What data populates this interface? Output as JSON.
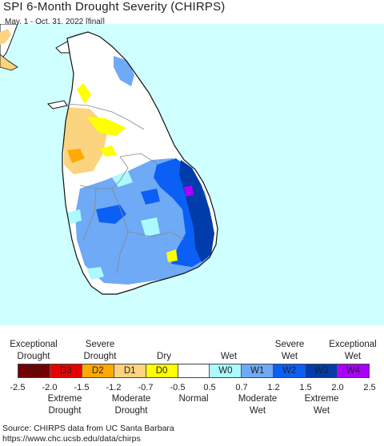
{
  "title": "SPI 6-Month Drought Severity (CHIRPS)",
  "subtitle": "May. 1 - Oct. 31, 2022 [final]",
  "colors": {
    "ocean": "#cfffff",
    "land": "#ffffff",
    "D4": "#730000",
    "D3": "#e60000",
    "D2": "#ffaa00",
    "D1": "#fcd37f",
    "D0": "#ffff00",
    "W0": "#aafaff",
    "W1": "#6eaaf5",
    "W2": "#0b5ff5",
    "W3": "#003caa",
    "W4": "#aa00ff"
  },
  "legend": {
    "top_labels": [
      {
        "lines": [
          "Exceptional",
          "Drought"
        ]
      },
      {
        "lines": [
          "Severe",
          "Drought"
        ]
      },
      {
        "lines": [
          "Dry"
        ]
      },
      {
        "lines": [
          "Wet"
        ]
      },
      {
        "lines": [
          "Severe",
          "Wet"
        ]
      },
      {
        "lines": [
          "Exceptional",
          "Wet"
        ]
      }
    ],
    "categories": [
      {
        "code": "D4",
        "color": "#730000"
      },
      {
        "code": "D3",
        "color": "#e60000"
      },
      {
        "code": "D2",
        "color": "#ffaa00"
      },
      {
        "code": "D1",
        "color": "#fcd37f"
      },
      {
        "code": "D0",
        "color": "#ffff00"
      },
      {
        "code": "",
        "color": "#ffffff"
      },
      {
        "code": "W0",
        "color": "#aafaff"
      },
      {
        "code": "W1",
        "color": "#6eaaf5"
      },
      {
        "code": "W2",
        "color": "#0b5ff5"
      },
      {
        "code": "W3",
        "color": "#003caa"
      },
      {
        "code": "W4",
        "color": "#aa00ff"
      }
    ],
    "ticks": [
      "-2.5",
      "-2.0",
      "-1.5",
      "-1.2",
      "-0.7",
      "-0.5",
      "0.5",
      "0.7",
      "1.2",
      "1.5",
      "2.0",
      "2.5"
    ],
    "bottom_labels": [
      {
        "lines": [
          "Extreme",
          "Drought"
        ]
      },
      {
        "lines": [
          "Moderate",
          "Drought"
        ]
      },
      {
        "lines": [
          "Normal"
        ]
      },
      {
        "lines": [
          "Moderate",
          "Wet"
        ]
      },
      {
        "lines": [
          "Extreme",
          "Wet"
        ]
      }
    ]
  },
  "footer": {
    "source": "Source: CHIRPS data from UC Santa Barbara",
    "url": "https://www.chc.ucsb.edu/data/chirps"
  }
}
